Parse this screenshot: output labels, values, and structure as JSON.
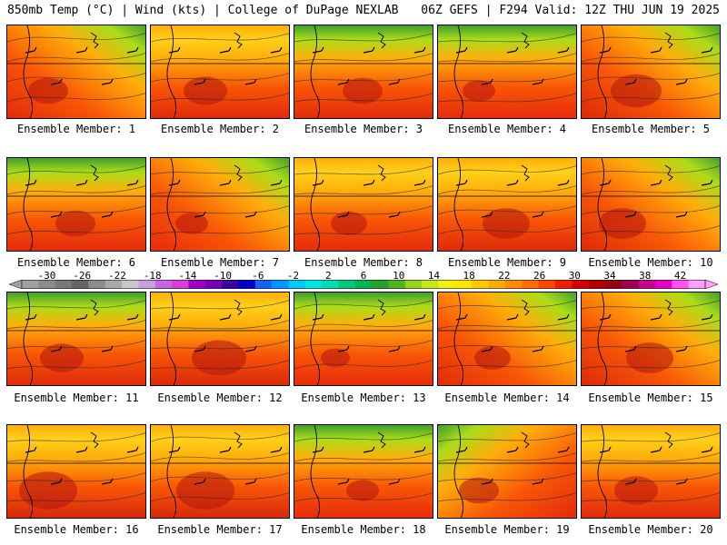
{
  "header": {
    "left": "850mb Temp (°C) | Wind (kts) | College of DuPage NEXLAB",
    "right": "06Z GEFS | F294 Valid: 12Z THU JUN 19 2025"
  },
  "members": [
    {
      "label": "Ensemble Member: 1",
      "warm": 0.55,
      "cool": "northeast"
    },
    {
      "label": "Ensemble Member: 2",
      "warm": 0.6,
      "cool": "none"
    },
    {
      "label": "Ensemble Member: 3",
      "warm": 0.55,
      "cool": "north"
    },
    {
      "label": "Ensemble Member: 4",
      "warm": 0.45,
      "cool": "north"
    },
    {
      "label": "Ensemble Member: 5",
      "warm": 0.7,
      "cool": "northeast"
    },
    {
      "label": "Ensemble Member: 6",
      "warm": 0.55,
      "cool": "north"
    },
    {
      "label": "Ensemble Member: 7",
      "warm": 0.45,
      "cool": "northeast"
    },
    {
      "label": "Ensemble Member: 8",
      "warm": 0.5,
      "cool": "none"
    },
    {
      "label": "Ensemble Member: 9",
      "warm": 0.65,
      "cool": "none"
    },
    {
      "label": "Ensemble Member: 10",
      "warm": 0.65,
      "cool": "northeast"
    },
    {
      "label": "Ensemble Member: 11",
      "warm": 0.6,
      "cool": "north"
    },
    {
      "label": "Ensemble Member: 12",
      "warm": 0.75,
      "cool": "none"
    },
    {
      "label": "Ensemble Member: 13",
      "warm": 0.4,
      "cool": "north"
    },
    {
      "label": "Ensemble Member: 14",
      "warm": 0.5,
      "cool": "northeast"
    },
    {
      "label": "Ensemble Member: 15",
      "warm": 0.65,
      "cool": "northeast"
    },
    {
      "label": "Ensemble Member: 16",
      "warm": 0.8,
      "cool": "none"
    },
    {
      "label": "Ensemble Member: 17",
      "warm": 0.8,
      "cool": "none"
    },
    {
      "label": "Ensemble Member: 18",
      "warm": 0.45,
      "cool": "north"
    },
    {
      "label": "Ensemble Member: 19",
      "warm": 0.55,
      "cool": "northwest"
    },
    {
      "label": "Ensemble Member: 20",
      "warm": 0.6,
      "cool": "none"
    }
  ],
  "colorbar": {
    "labels": [
      "-30",
      "-26",
      "-22",
      "-18",
      "-14",
      "-10",
      "-6",
      "-2",
      "2",
      "6",
      "10",
      "14",
      "18",
      "22",
      "26",
      "30",
      "34",
      "38",
      "42"
    ],
    "colors": [
      "#a0a0a0",
      "#8c8c8c",
      "#787878",
      "#646464",
      "#8c8c8c",
      "#a8a8a8",
      "#c8c8c8",
      "#c8a0e0",
      "#c864e6",
      "#dc3cdc",
      "#a000c8",
      "#7800b4",
      "#3c00a0",
      "#0000c8",
      "#1464f0",
      "#0096ff",
      "#00c8ff",
      "#00e6e6",
      "#00dcb4",
      "#00c878",
      "#00b450",
      "#28a028",
      "#50b41e",
      "#96d21e",
      "#c8e61e",
      "#f0f014",
      "#ffe600",
      "#ffc800",
      "#ffaa00",
      "#ff8c00",
      "#ff6e00",
      "#ff4600",
      "#f01e00",
      "#d20000",
      "#b40000",
      "#960014",
      "#a00050",
      "#c8008c",
      "#e600c8",
      "#ff50f0",
      "#ffa0ff"
    ]
  }
}
